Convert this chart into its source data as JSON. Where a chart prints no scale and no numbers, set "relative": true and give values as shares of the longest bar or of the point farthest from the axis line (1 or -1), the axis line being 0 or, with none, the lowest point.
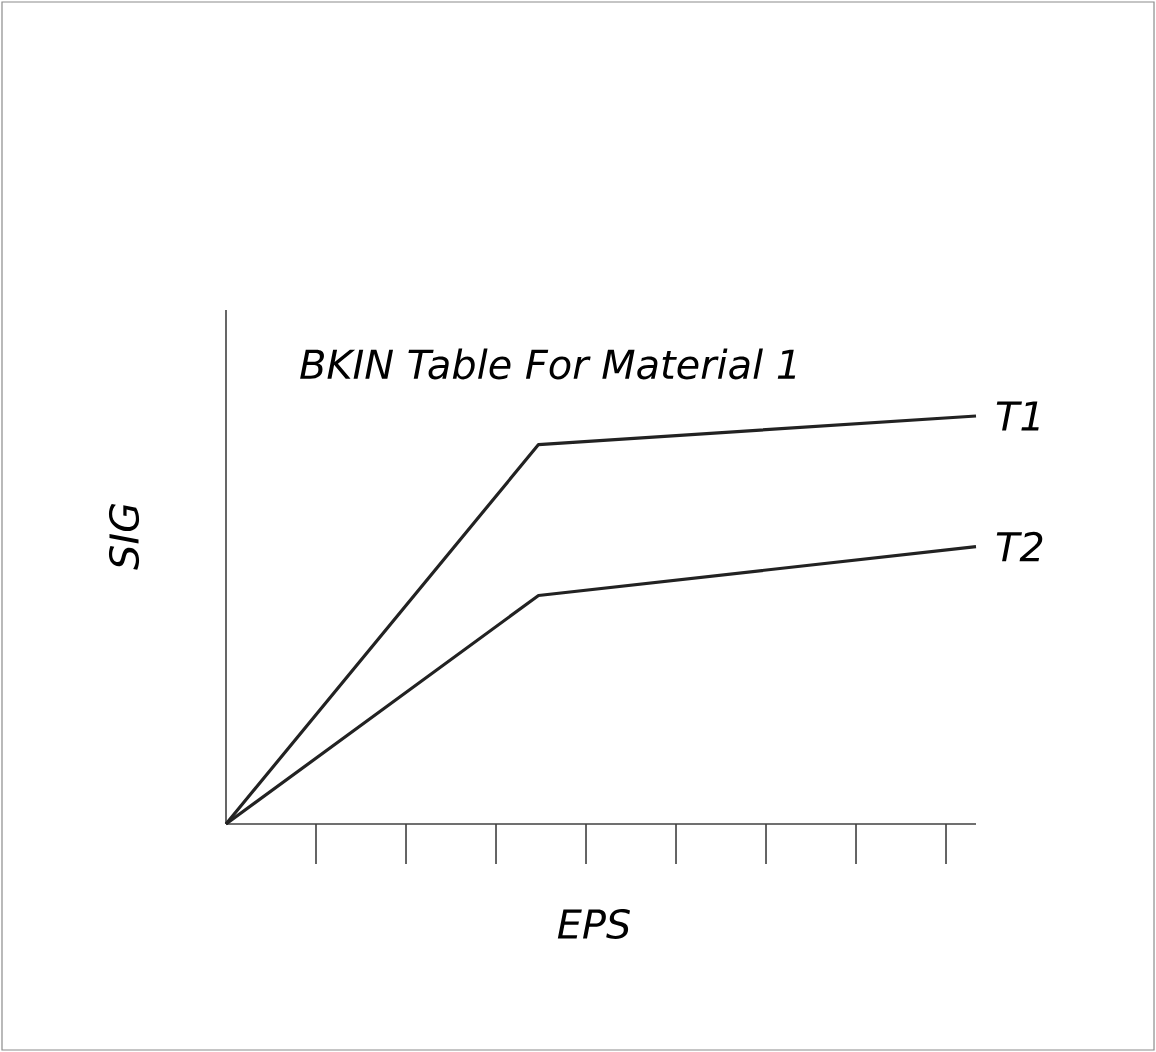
{
  "chart_data": {
    "type": "line",
    "title": "BKIN Table For Material 1",
    "xlabel": "EPS",
    "ylabel": "SIG",
    "relative": true,
    "categories": [
      null,
      null,
      null,
      null,
      null,
      null,
      null,
      null,
      null,
      null,
      null,
      null,
      null
    ],
    "line_style": "solid",
    "series": [
      {
        "name": "T1",
        "color": "#222222",
        "values": [
          0,
          null,
          null,
          null,
          null,
          0.93,
          null,
          null,
          null,
          null,
          null,
          null,
          1
        ]
      },
      {
        "name": "T2",
        "color": "#222222",
        "values": [
          0,
          null,
          null,
          null,
          null,
          0.56,
          null,
          null,
          null,
          null,
          null,
          null,
          0.68
        ]
      }
    ]
  }
}
